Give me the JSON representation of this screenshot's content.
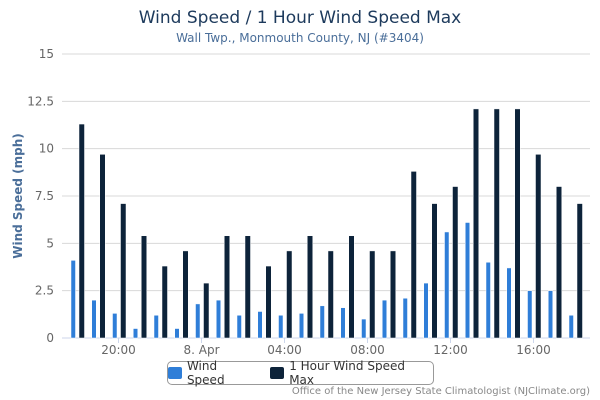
{
  "chart_data": {
    "type": "bar",
    "title": "Wind Speed / 1 Hour Wind Speed Max",
    "subtitle": "Wall Twp., Monmouth County, NJ (#3404)",
    "ylabel": "Wind Speed (mph)",
    "xlabel": "",
    "ylim": [
      0,
      15
    ],
    "yticks": [
      "0",
      "2.5",
      "5",
      "7.5",
      "10",
      "12.5",
      "15"
    ],
    "xtick_labels": [
      {
        "hour_index": 2,
        "label": "20:00"
      },
      {
        "hour_index": 6,
        "label": "8. Apr"
      },
      {
        "hour_index": 10,
        "label": "04:00"
      },
      {
        "hour_index": 14,
        "label": "08:00"
      },
      {
        "hour_index": 18,
        "label": "12:00"
      },
      {
        "hour_index": 22,
        "label": "16:00"
      }
    ],
    "categories": [
      "18:00",
      "19:00",
      "20:00",
      "21:00",
      "22:00",
      "23:00",
      "00:00",
      "01:00",
      "02:00",
      "03:00",
      "04:00",
      "05:00",
      "06:00",
      "07:00",
      "08:00",
      "09:00",
      "10:00",
      "11:00",
      "12:00",
      "13:00",
      "14:00",
      "15:00",
      "16:00",
      "17:00",
      "18:00"
    ],
    "grid": true,
    "legend_position": "bottom",
    "series": [
      {
        "name": "Wind Speed",
        "color": "#2f7ed8",
        "values": [
          4.1,
          2.0,
          1.3,
          0.5,
          1.2,
          0.5,
          1.8,
          2.0,
          1.2,
          1.4,
          1.2,
          1.3,
          1.7,
          1.6,
          1.0,
          2.0,
          2.1,
          2.9,
          5.6,
          6.1,
          4.0,
          3.7,
          2.5,
          2.5,
          1.2
        ]
      },
      {
        "name": "1 Hour Wind Speed Max",
        "color": "#0d233a",
        "values": [
          11.3,
          9.7,
          7.1,
          5.4,
          3.8,
          4.6,
          2.9,
          5.4,
          5.4,
          3.8,
          4.6,
          5.4,
          4.6,
          5.4,
          4.6,
          4.6,
          8.8,
          7.1,
          8.0,
          12.1,
          12.1,
          12.1,
          9.7,
          8.0,
          7.1
        ]
      }
    ]
  },
  "credit": "Office of the New Jersey State Climatologist (NJClimate.org)"
}
